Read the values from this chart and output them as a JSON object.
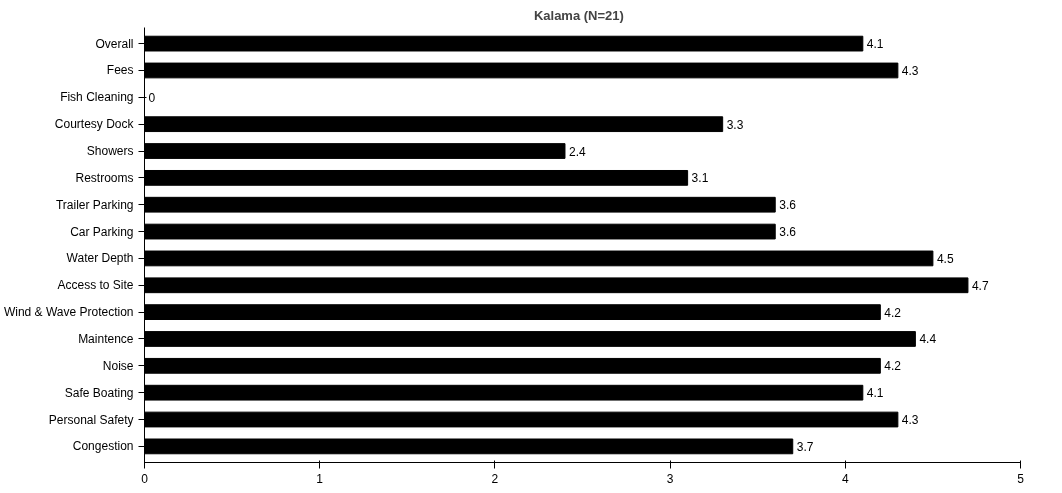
{
  "chart_data": {
    "type": "bar",
    "orientation": "horizontal",
    "title": "Kalama   (N=21)",
    "categories": [
      "Overall",
      "Fees",
      "Fish Cleaning",
      "Courtesy Dock",
      "Showers",
      "Restrooms",
      "Trailer Parking",
      "Car Parking",
      "Water Depth",
      "Access to Site",
      "Wind & Wave Protection",
      "Maintence",
      "Noise",
      "Safe Boating",
      "Personal Safety",
      "Congestion"
    ],
    "values": [
      4.1,
      4.3,
      0,
      3.3,
      2.4,
      3.1,
      3.6,
      3.6,
      4.5,
      4.7,
      4.2,
      4.4,
      4.2,
      4.1,
      4.3,
      3.7
    ],
    "color": "#000000",
    "xlim": [
      0,
      5
    ],
    "xticks": [
      0,
      1,
      2,
      3,
      4,
      5
    ],
    "grid": false,
    "data_labels": true
  }
}
